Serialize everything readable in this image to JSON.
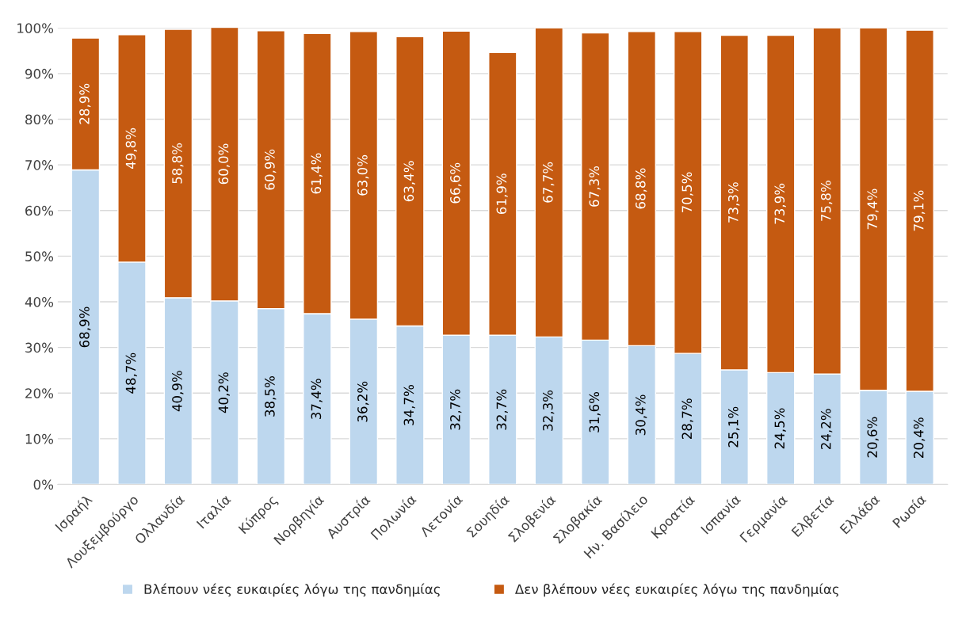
{
  "chart_data": {
    "type": "bar",
    "stacked": true,
    "categories": [
      "Ισραήλ",
      "Λουξεμβούργο",
      "Ολλανδία",
      "Ιταλία",
      "Κύπρος",
      "Νορβηγία",
      "Αυστρία",
      "Πολωνία",
      "Λετονία",
      "Σουηδία",
      "Σλοβενία",
      "Σλοβακία",
      "Ην. Βασίλειο",
      "Κροατία",
      "Ισπανία",
      "Γερμανία",
      "Ελβετία",
      "Ελλάδα",
      "Ρωσία"
    ],
    "series": [
      {
        "name": "Βλέπουν νέες ευκαιρίες λόγω της πανδημίας",
        "color": "#bdd7ee",
        "values": [
          68.9,
          48.7,
          40.9,
          40.2,
          38.5,
          37.4,
          36.2,
          34.7,
          32.7,
          32.7,
          32.3,
          31.6,
          30.4,
          28.7,
          25.1,
          24.5,
          24.2,
          20.6,
          20.4
        ],
        "value_labels": [
          "68,9%",
          "48,7%",
          "40,9%",
          "40,2%",
          "38,5%",
          "37,4%",
          "36,2%",
          "34,7%",
          "32,7%",
          "32,7%",
          "32,3%",
          "31,6%",
          "30,4%",
          "28,7%",
          "25,1%",
          "24,5%",
          "24,2%",
          "20,6%",
          "20,4%"
        ]
      },
      {
        "name": "Δεν βλέπουν νέες ευκαιρίες λόγω της πανδημίας",
        "color": "#c55a11",
        "values": [
          28.9,
          49.8,
          58.8,
          60.0,
          60.9,
          61.4,
          63.0,
          63.4,
          66.6,
          61.9,
          67.7,
          67.3,
          68.8,
          70.5,
          73.3,
          73.9,
          75.8,
          79.4,
          79.1
        ],
        "value_labels": [
          "28,9%",
          "49,8%",
          "58,8%",
          "60,0%",
          "60,9%",
          "61,4%",
          "63,0%",
          "63,4%",
          "66,6%",
          "61,9%",
          "67,7%",
          "67,3%",
          "68,8%",
          "70,5%",
          "73,3%",
          "73,9%",
          "75,8%",
          "79,4%",
          "79,1%"
        ]
      }
    ],
    "ylim": [
      0,
      100
    ],
    "yticks": [
      {
        "value": 0,
        "label": "0%"
      },
      {
        "value": 10,
        "label": "10%"
      },
      {
        "value": 20,
        "label": "20%"
      },
      {
        "value": 30,
        "label": "30%"
      },
      {
        "value": 40,
        "label": "40%"
      },
      {
        "value": 50,
        "label": "50%"
      },
      {
        "value": 60,
        "label": "60%"
      },
      {
        "value": 70,
        "label": "70%"
      },
      {
        "value": 80,
        "label": "80%"
      },
      {
        "value": 90,
        "label": "90%"
      },
      {
        "value": 100,
        "label": "100%"
      }
    ],
    "grid": "y",
    "legend": "bottom"
  }
}
